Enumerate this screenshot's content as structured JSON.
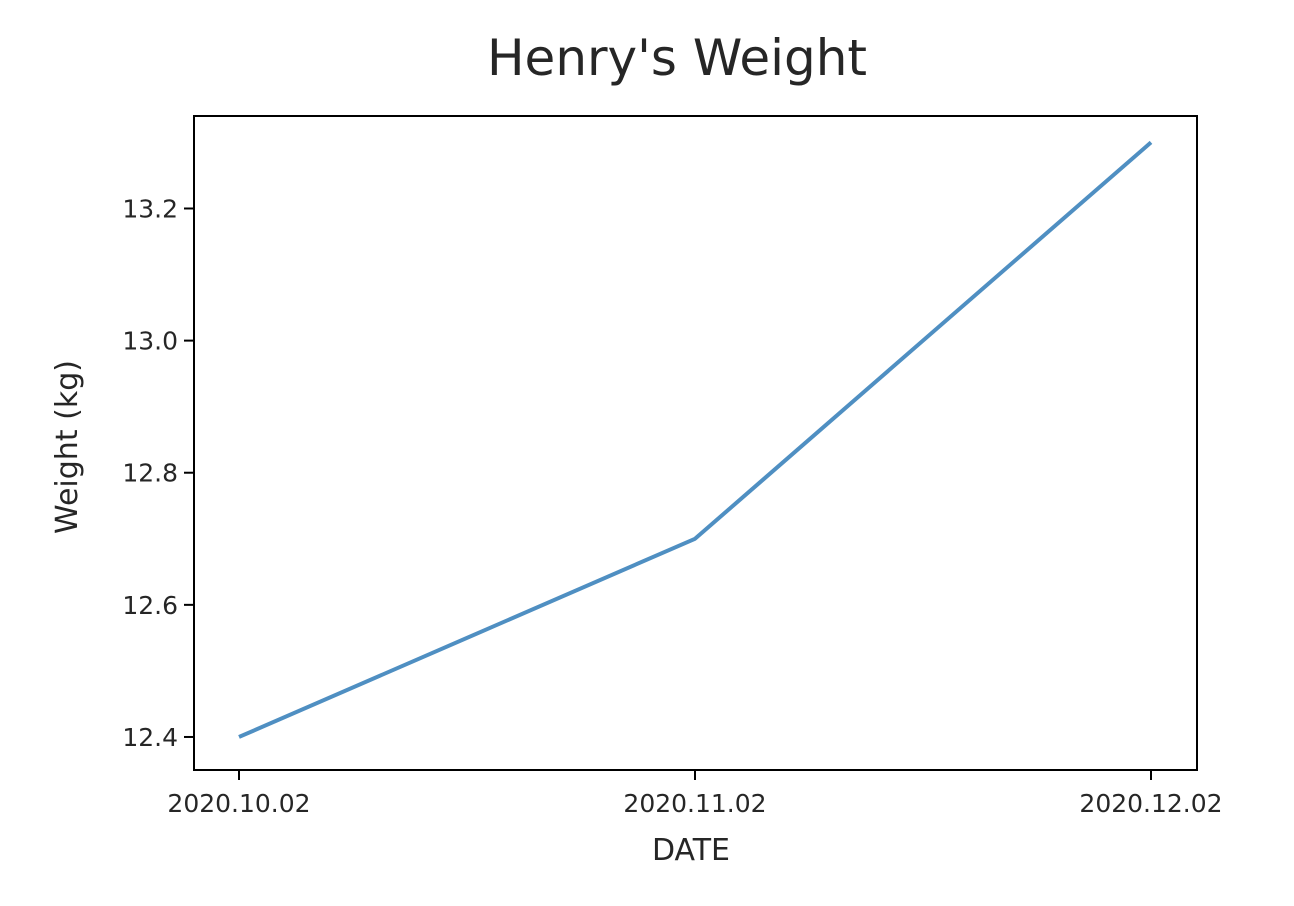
{
  "chart_data": {
    "type": "line",
    "title": "Henry's Weight",
    "xlabel": "DATE",
    "ylabel": "Weight (kg)",
    "x": [
      "2020.10.02",
      "2020.11.02",
      "2020.12.02"
    ],
    "x_tick_labels": [
      "2020.10.02",
      "2020.11.02",
      "2020.12.02"
    ],
    "series": [
      {
        "values": [
          12.4,
          12.7,
          13.3
        ],
        "color": "#4f8fc2"
      }
    ],
    "ylim": [
      12.35,
      13.34
    ],
    "y_ticks": [
      12.4,
      12.6,
      12.8,
      13.0,
      13.2
    ],
    "y_tick_labels": [
      "12.4",
      "12.6",
      "12.8",
      "13.0",
      "13.2"
    ],
    "grid": false,
    "legend": false
  }
}
